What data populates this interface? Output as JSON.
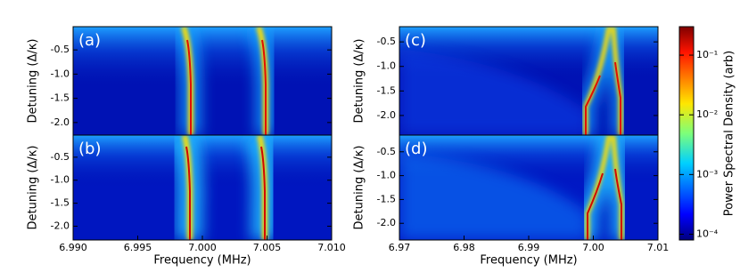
{
  "chart_data": [
    {
      "type": "heatmap",
      "panel_label": "(a)",
      "ylabel": "Detuning (Δ/κ)",
      "xlim": [
        6.99,
        7.01
      ],
      "ylim": [
        -2.26,
        -0.02
      ],
      "yticks": [
        -0.5,
        {
          "value": -1.0,
          "label": "-1.0"
        },
        -1.5,
        {
          "value": -2.0,
          "label": "-2.0"
        }
      ]
    },
    {
      "type": "heatmap",
      "panel_label": "(b)",
      "ylabel": "Detuning (Δ/κ)",
      "xlabel": "Frequency (MHz)",
      "xlim": [
        6.99,
        7.01
      ],
      "ylim": [
        -2.3,
        -0.02
      ],
      "yticks": [
        -0.5,
        {
          "value": -1.0,
          "label": "-1.0"
        },
        -1.5,
        {
          "value": -2.0,
          "label": "-2.0"
        }
      ],
      "xticks": [
        {
          "value": 6.99,
          "label": "6.990"
        },
        6.995,
        {
          "value": 7.0,
          "label": "7.000"
        },
        7.005,
        {
          "value": 7.01,
          "label": "7.010"
        }
      ]
    },
    {
      "type": "heatmap",
      "panel_label": "(c)",
      "ylabel": "Detuning (Δ/κ)",
      "xlim": [
        6.97,
        7.01
      ],
      "ylim": [
        -2.4,
        -0.19
      ],
      "yticks": [
        -0.5,
        {
          "value": -1.0,
          "label": "-1.0"
        },
        -1.5,
        {
          "value": -2.0,
          "label": "-2.0"
        }
      ]
    },
    {
      "type": "heatmap",
      "panel_label": "(d)",
      "ylabel": "Detuning (Δ/κ)",
      "xlabel": "Frequency (MHz)",
      "xlim": [
        6.97,
        7.01
      ],
      "ylim": [
        -2.35,
        -0.15
      ],
      "yticks": [
        -0.5,
        {
          "value": -1.0,
          "label": "-1.0"
        },
        -1.5,
        {
          "value": -2.0,
          "label": "-2.0"
        }
      ],
      "xticks": [
        6.97,
        6.98,
        6.99,
        {
          "value": 7.0,
          "label": "7.00"
        },
        7.01
      ]
    }
  ],
  "colorbar": {
    "label": "Power Spectral Density (arb)",
    "log": true,
    "clim": [
      8e-05,
      0.3
    ],
    "ticks": [
      {
        "value": 0.1,
        "label": "10⁻¹"
      },
      {
        "value": 0.01,
        "label": "10⁻²"
      },
      {
        "value": 0.001,
        "label": "10⁻³"
      },
      {
        "value": 0.0001,
        "label": "10⁻⁴"
      }
    ]
  }
}
